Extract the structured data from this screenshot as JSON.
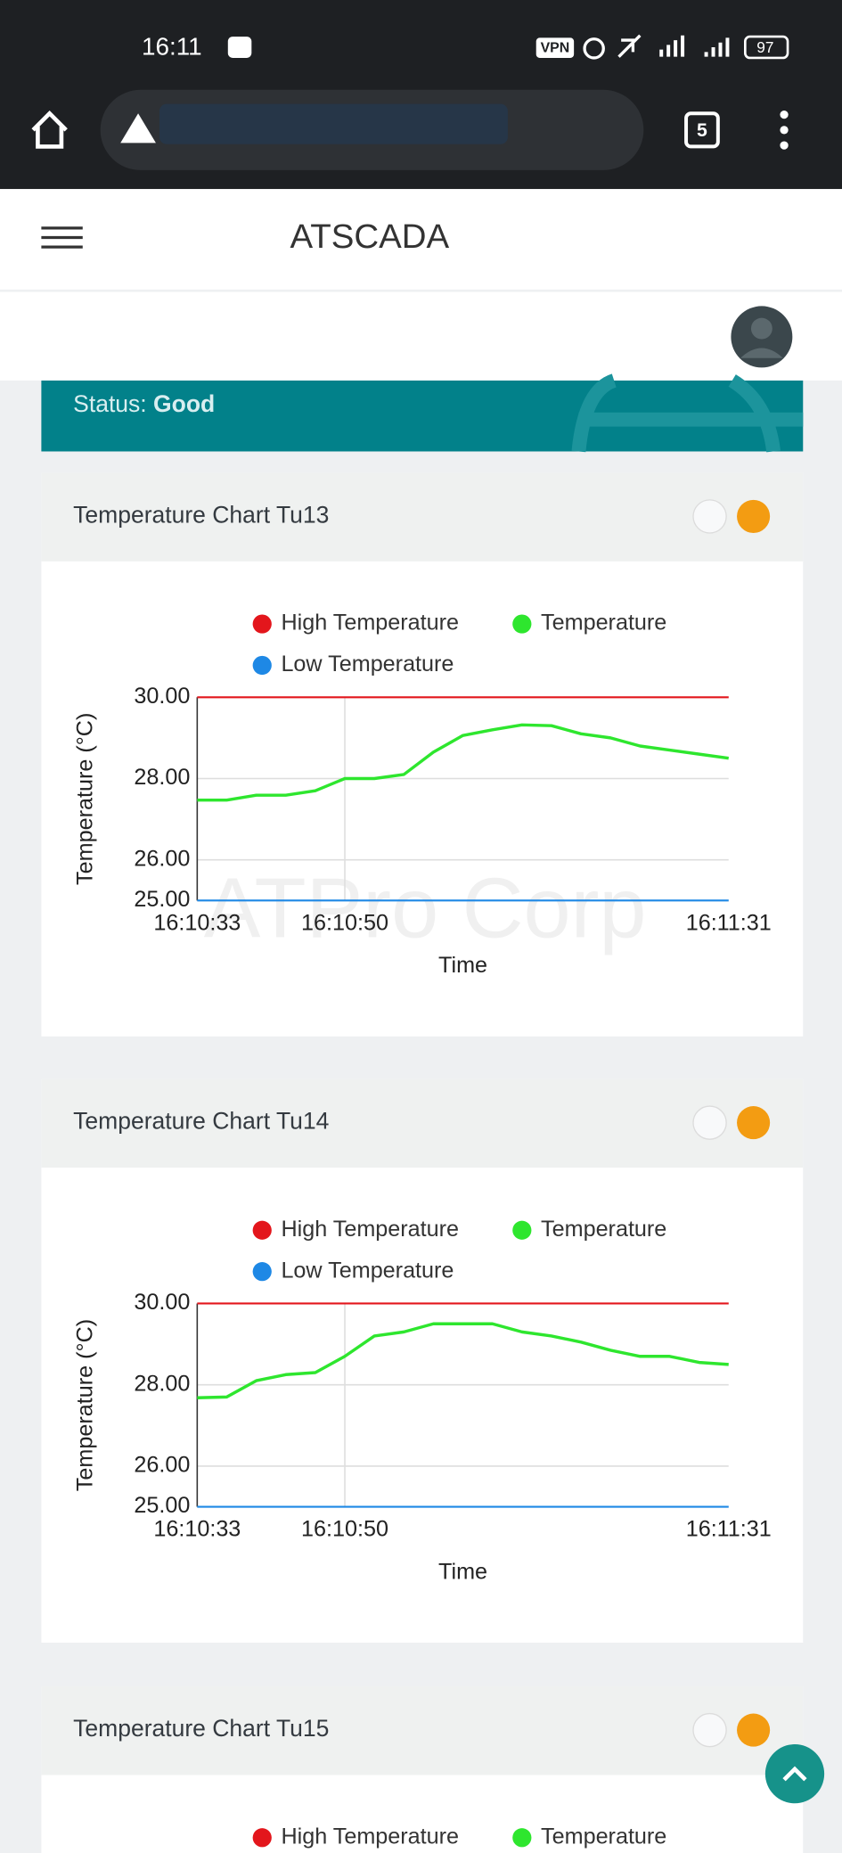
{
  "status_bar": {
    "time": "16:11",
    "vpn": "VPN",
    "battery": "97",
    "tabs": "5"
  },
  "header": {
    "title": "ATSCADA"
  },
  "status": {
    "label": "Status:",
    "value": "Good"
  },
  "chart_data": [
    {
      "type": "line",
      "title": "Temperature Chart Tu13",
      "watermark": "ATPro Corp",
      "x_label": "Time",
      "y_label": "Temperature (°C)",
      "categories": [
        "16:10:33",
        null,
        null,
        null,
        null,
        "16:10:50",
        null,
        null,
        null,
        null,
        null,
        null,
        null,
        null,
        null,
        null,
        null,
        null,
        "16:11:31"
      ],
      "series": [
        {
          "name": "High Temperature",
          "color": "#e3161c",
          "values": [
            30,
            30,
            30,
            30,
            30,
            30,
            30,
            30,
            30,
            30,
            30,
            30,
            30,
            30,
            30,
            30,
            30,
            30,
            30
          ]
        },
        {
          "name": "Temperature",
          "color": "#2ee62e",
          "values": [
            27.47,
            27.47,
            27.59,
            27.59,
            27.7,
            28.0,
            28.0,
            28.1,
            28.65,
            29.06,
            29.2,
            29.32,
            29.3,
            29.1,
            29.0,
            28.8,
            28.7,
            28.6,
            28.5
          ]
        },
        {
          "name": "Low Temperature",
          "color": "#1e88e5",
          "values": [
            25,
            25,
            25,
            25,
            25,
            25,
            25,
            25,
            25,
            25,
            25,
            25,
            25,
            25,
            25,
            25,
            25,
            25,
            25
          ]
        }
      ],
      "ylim": [
        25,
        30
      ],
      "yticks": [
        {
          "value": 25,
          "label": "25.00"
        },
        {
          "value": 26,
          "label": "26.00"
        },
        {
          "value": 28,
          "label": "28.00"
        },
        {
          "value": 30,
          "label": "30.00"
        }
      ],
      "grid": true
    },
    {
      "type": "line",
      "title": "Temperature Chart Tu14",
      "x_label": "Time",
      "y_label": "Temperature (°C)",
      "categories": [
        "16:10:33",
        null,
        null,
        null,
        null,
        "16:10:50",
        null,
        null,
        null,
        null,
        null,
        null,
        null,
        null,
        null,
        null,
        null,
        null,
        "16:11:31"
      ],
      "series": [
        {
          "name": "High Temperature",
          "color": "#e3161c",
          "values": [
            30,
            30,
            30,
            30,
            30,
            30,
            30,
            30,
            30,
            30,
            30,
            30,
            30,
            30,
            30,
            30,
            30,
            30,
            30
          ]
        },
        {
          "name": "Temperature",
          "color": "#2ee62e",
          "values": [
            27.68,
            27.7,
            28.1,
            28.25,
            28.3,
            28.7,
            29.2,
            29.3,
            29.5,
            29.5,
            29.5,
            29.3,
            29.2,
            29.05,
            28.85,
            28.7,
            28.7,
            28.55,
            28.5
          ]
        },
        {
          "name": "Low Temperature",
          "color": "#1e88e5",
          "values": [
            25,
            25,
            25,
            25,
            25,
            25,
            25,
            25,
            25,
            25,
            25,
            25,
            25,
            25,
            25,
            25,
            25,
            25,
            25
          ]
        }
      ],
      "ylim": [
        25,
        30
      ],
      "yticks": [
        {
          "value": 25,
          "label": "25.00"
        },
        {
          "value": 26,
          "label": "26.00"
        },
        {
          "value": 28,
          "label": "28.00"
        },
        {
          "value": 30,
          "label": "30.00"
        }
      ],
      "grid": true
    }
  ],
  "partial_card": {
    "title": "Temperature Chart Tu15",
    "legend": [
      {
        "name": "High Temperature",
        "color": "#e3161c"
      },
      {
        "name": "Temperature",
        "color": "#2ee62e"
      }
    ]
  }
}
